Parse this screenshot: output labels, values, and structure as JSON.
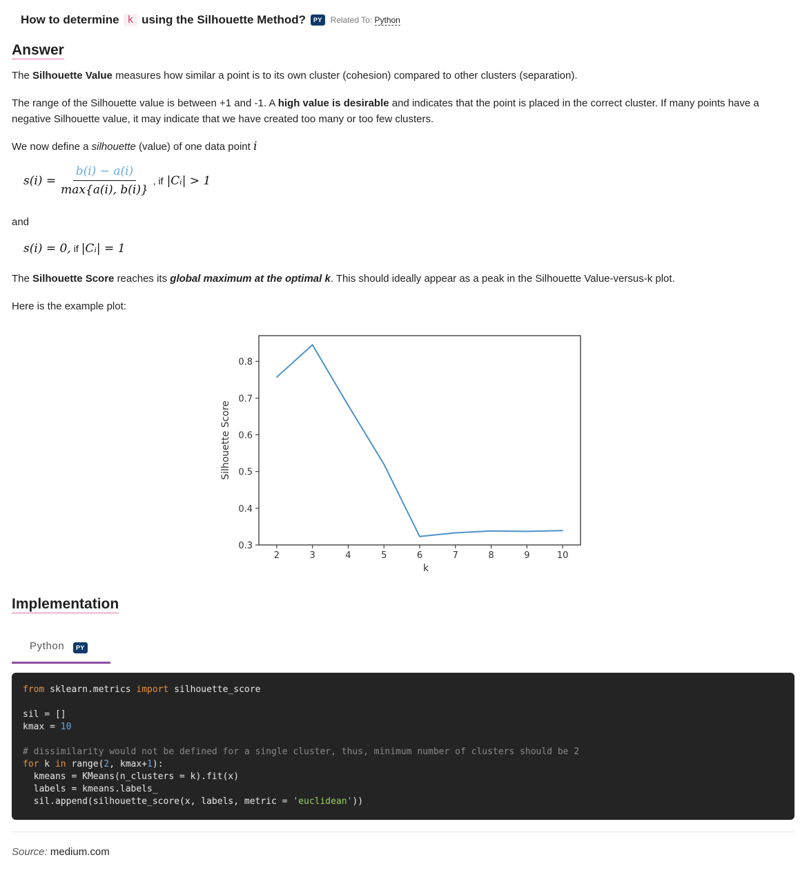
{
  "question": {
    "prefix": "How to determine",
    "k": "k",
    "suffix": "using the Silhouette Method?",
    "badge": "PY",
    "related_label": "Related To:",
    "related_link": "Python"
  },
  "answer": {
    "heading": "Answer",
    "p1_bold": "Silhouette Value",
    "p1_start": "The",
    "p1_rest": "measures how similar a point is to its own cluster (cohesion) compared to other clusters (separation).",
    "p2_start": "The range of the Silhouette value is between +1 and -1. A",
    "p2_bold": "high value is desirable",
    "p2_rest": "and indicates that the point is placed in the correct cluster. If many points have a negative Silhouette value, it may indicate that we have created too many or too few clusters.",
    "p3_start": "We now define a",
    "p3_italic": "silhouette",
    "p3_rest": "(value) of one data point",
    "p3_var": "i",
    "eq1_lhs": "s(i) =",
    "eq1_num": "b(i) − a(i)",
    "eq1_den": "max{a(i), b(i)}",
    "eq1_if": ", if",
    "eq1_cond": "|Cᵢ| > 1",
    "and": "and",
    "eq2_lhs": "s(i) = 0,",
    "eq2_if": "if",
    "eq2_cond": "|Cᵢ| = 1",
    "p4_start": "The",
    "p4_bold": "Silhouette Score",
    "p4_mid": "reaches its",
    "p4_bi": "global maximum at the optimal k",
    "p4_rest": ". This should ideally appear as a peak in the Silhouette Value-versus-k plot.",
    "p5": "Here is the example plot:"
  },
  "chart_data": {
    "type": "line",
    "x": [
      2,
      3,
      4,
      5,
      6,
      7,
      8,
      9,
      10
    ],
    "values": [
      0.757,
      0.845,
      0.68,
      0.52,
      0.323,
      0.333,
      0.338,
      0.337,
      0.339
    ],
    "xlabel": "k",
    "ylabel": "Silhouette Score",
    "xticks": [
      "2",
      "3",
      "4",
      "5",
      "6",
      "7",
      "8",
      "9",
      "10"
    ],
    "yticks": [
      "0.3",
      "0.4",
      "0.5",
      "0.6",
      "0.7",
      "0.8"
    ],
    "xlim": [
      1.5,
      10.5
    ],
    "ylim": [
      0.3,
      0.87
    ],
    "line_color": "#4e91c6",
    "grid": false
  },
  "implementation": {
    "heading": "Implementation",
    "tab_label": "Python",
    "tab_badge": "PY"
  },
  "code": {
    "l1_from": "from",
    "l1_mod": " sklearn.metrics ",
    "l1_import": "import",
    "l1_name": " silhouette_score",
    "l3": "sil = []",
    "l4_a": "kmax = ",
    "l4_n": "10",
    "l6_comment": "# dissimilarity would not be defined for a single cluster, thus, minimum number of clusters should be 2",
    "l7_for": "for",
    "l7_k": " k ",
    "l7_in": "in",
    "l7_range": " range(",
    "l7_n2": "2",
    "l7_mid": ", kmax+",
    "l7_n1": "1",
    "l7_end": "):",
    "l8": "  kmeans = KMeans(n_clusters = k).fit(x)",
    "l9": "  labels = kmeans.labels_",
    "l10_a": "  sil.append(silhouette_score(x, labels, metric = ",
    "l10_s": "'euclidean'",
    "l10_b": "))"
  },
  "source": {
    "label": "Source:",
    "value": "medium.com"
  }
}
